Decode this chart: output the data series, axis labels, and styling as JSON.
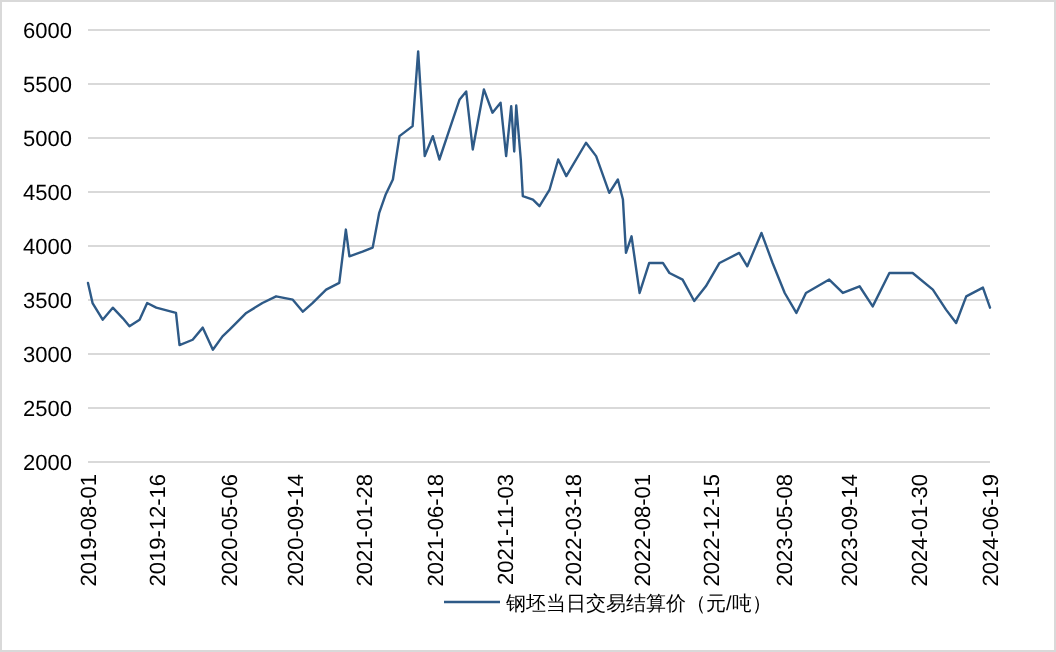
{
  "chart_data": {
    "type": "line",
    "x": [
      "2019-08-01",
      "2019-08-10",
      "2019-08-30",
      "2019-09-19",
      "2019-10-09",
      "2019-10-22",
      "2019-11-11",
      "2019-11-26",
      "2019-12-14",
      "2020-01-22",
      "2020-01-29",
      "2020-02-24",
      "2020-03-15",
      "2020-04-04",
      "2020-04-23",
      "2020-05-07",
      "2020-06-09",
      "2020-07-11",
      "2020-08-07",
      "2020-09-09",
      "2020-09-29",
      "2020-10-18",
      "2020-11-14",
      "2020-12-10",
      "2020-12-23",
      "2020-12-30",
      "2021-01-25",
      "2021-02-14",
      "2021-02-27",
      "2021-03-12",
      "2021-03-26",
      "2021-04-08",
      "2021-05-04",
      "2021-05-15",
      "2021-05-28",
      "2021-06-13",
      "2021-06-26",
      "2021-07-16",
      "2021-08-05",
      "2021-08-18",
      "2021-08-31",
      "2021-09-22",
      "2021-10-09",
      "2021-10-25",
      "2021-11-05",
      "2021-11-15",
      "2021-11-21",
      "2021-11-25",
      "2021-12-04",
      "2021-12-08",
      "2021-12-28",
      "2022-01-10",
      "2022-01-30",
      "2022-02-16",
      "2022-03-04",
      "2022-04-12",
      "2022-05-02",
      "2022-05-28",
      "2022-06-14",
      "2022-06-24",
      "2022-06-30",
      "2022-07-11",
      "2022-07-27",
      "2022-08-15",
      "2022-09-11",
      "2022-09-24",
      "2022-10-20",
      "2022-11-12",
      "2022-12-05",
      "2023-01-01",
      "2023-02-09",
      "2023-02-25",
      "2023-03-25",
      "2023-04-16",
      "2023-05-10",
      "2023-06-02",
      "2023-06-21",
      "2023-08-06",
      "2023-09-02",
      "2023-10-05",
      "2023-10-31",
      "2023-12-03",
      "2024-01-18",
      "2024-02-27",
      "2024-03-24",
      "2024-04-13",
      "2024-05-03",
      "2024-06-05",
      "2024-06-19"
    ],
    "series": [
      {
        "name": "钢坯当日交易结算价（元/吨）",
        "color": "#2e5a87",
        "values": [
          3658,
          3472,
          3318,
          3429,
          3330,
          3256,
          3318,
          3472,
          3429,
          3380,
          3083,
          3132,
          3244,
          3040,
          3163,
          3225,
          3380,
          3472,
          3534,
          3503,
          3392,
          3472,
          3596,
          3658,
          4152,
          3905,
          3948,
          3985,
          4307,
          4480,
          4616,
          5017,
          5110,
          5802,
          4832,
          5017,
          4801,
          5079,
          5357,
          5431,
          4894,
          5450,
          5234,
          5326,
          4832,
          5295,
          4875,
          5301,
          4801,
          4461,
          4430,
          4369,
          4523,
          4801,
          4647,
          4956,
          4832,
          4492,
          4616,
          4430,
          3936,
          4090,
          3565,
          3843,
          3843,
          3750,
          3689,
          3491,
          3627,
          3843,
          3936,
          3812,
          4121,
          3843,
          3565,
          3380,
          3565,
          3689,
          3565,
          3627,
          3441,
          3750,
          3750,
          3596,
          3411,
          3287,
          3534,
          3615,
          3429
        ]
      }
    ],
    "xlim": [
      "2019-08-01",
      "2024-06-19"
    ],
    "xticks": [
      {
        "value": "2019-08-01",
        "label": "2019-08-01"
      },
      {
        "value": "2019-12-16",
        "label": "2019-12-16"
      },
      {
        "value": "2020-05-06",
        "label": "2020-05-06"
      },
      {
        "value": "2020-09-14",
        "label": "2020-09-14"
      },
      {
        "value": "2021-01-28",
        "label": "2021-01-28"
      },
      {
        "value": "2021-06-18",
        "label": "2021-06-18"
      },
      {
        "value": "2021-11-03",
        "label": "2021-11-03"
      },
      {
        "value": "2022-03-18",
        "label": "2022-03-18"
      },
      {
        "value": "2022-08-01",
        "label": "2022-08-01"
      },
      {
        "value": "2022-12-15",
        "label": "2022-12-15"
      },
      {
        "value": "2023-05-08",
        "label": "2023-05-08"
      },
      {
        "value": "2023-09-14",
        "label": "2023-09-14"
      },
      {
        "value": "2024-01-30",
        "label": "2024-01-30"
      },
      {
        "value": "2024-06-19",
        "label": "2024-06-19"
      }
    ],
    "ylim": [
      2000,
      6000
    ],
    "yticks": [
      2000,
      2500,
      3000,
      3500,
      4000,
      4500,
      5000,
      5500,
      6000
    ],
    "grid": "y",
    "legend": "bottom"
  }
}
